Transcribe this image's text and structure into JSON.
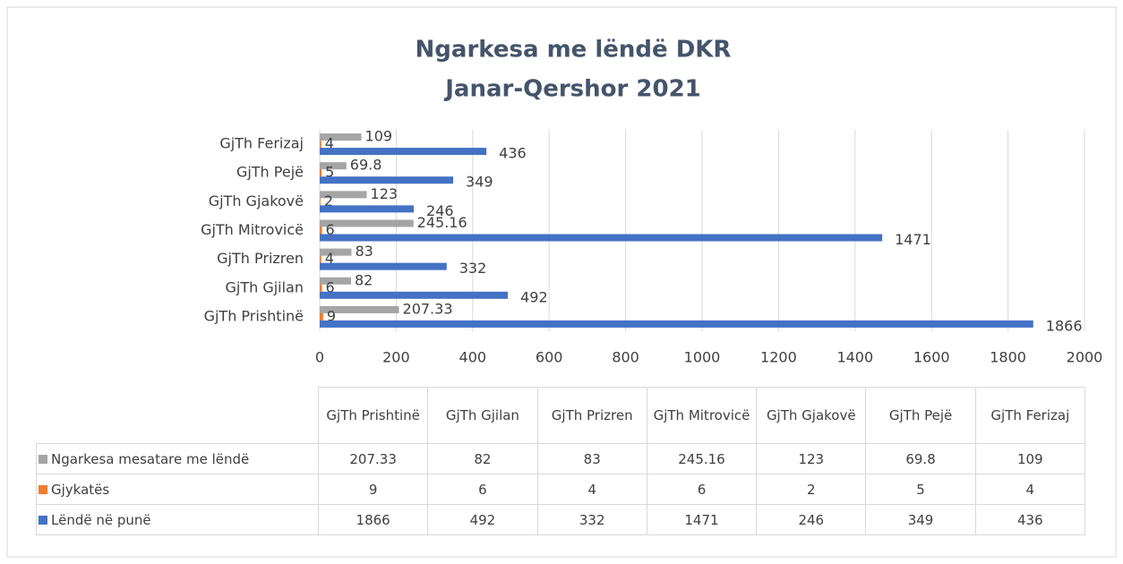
{
  "chart_data": {
    "type": "bar",
    "orientation": "horizontal",
    "title": "Ngarkesa me lëndë DKR",
    "subtitle": "Janar-Qershor 2021",
    "categories": [
      "GjTh Prishtinë",
      "GjTh Gjilan",
      "GjTh Prizren",
      "GjTh Mitrovicë",
      "GjTh Gjakovë",
      "GjTh Pejë",
      "GjTh Ferizaj"
    ],
    "series": [
      {
        "name": "Ngarkesa mesatare me lëndë",
        "color": "#a5a5a5",
        "values": [
          207.33,
          82,
          83,
          245.16,
          123,
          69.8,
          109
        ]
      },
      {
        "name": "Gjykatës",
        "color": "#ed7d31",
        "values": [
          9,
          6,
          4,
          6,
          2,
          5,
          4
        ]
      },
      {
        "name": "Lëndë në punë",
        "color": "#4472c4",
        "values": [
          1866,
          492,
          332,
          1471,
          246,
          349,
          436
        ]
      }
    ],
    "xlim": [
      0,
      2000
    ],
    "xticks": [
      0,
      200,
      400,
      600,
      800,
      1000,
      1200,
      1400,
      1600,
      1800,
      2000
    ],
    "grid": true,
    "data_table": true
  }
}
